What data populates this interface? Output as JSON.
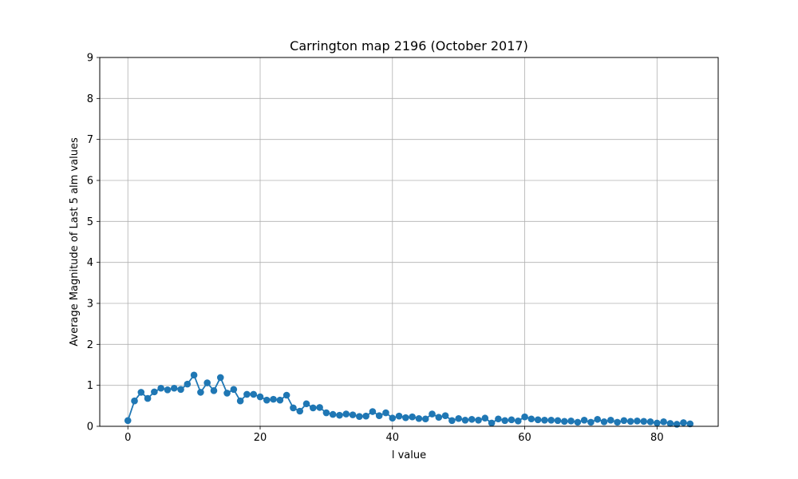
{
  "chart_data": {
    "type": "line",
    "title": "Carrington map 2196 (October 2017)",
    "xlabel": "l value",
    "ylabel": "Average Magnitude of Last 5 alm values",
    "xlim": [
      -4.25,
      89.25
    ],
    "ylim": [
      0,
      9
    ],
    "xticks": [
      0,
      20,
      40,
      60,
      80
    ],
    "yticks": [
      0,
      1,
      2,
      3,
      4,
      5,
      6,
      7,
      8,
      9
    ],
    "grid": true,
    "color": "#1f77b4",
    "marker": "circle",
    "series": [
      {
        "x": [
          0,
          1,
          2,
          3,
          4,
          5,
          6,
          7,
          8,
          9,
          10,
          11,
          12,
          13,
          14,
          15,
          16,
          17,
          18,
          19,
          20,
          21,
          22,
          23,
          24,
          25,
          26,
          27,
          28,
          29,
          30,
          31,
          32,
          33,
          34,
          35,
          36,
          37,
          38,
          39,
          40,
          41,
          42,
          43,
          44,
          45,
          46,
          47,
          48,
          49,
          50,
          51,
          52,
          53,
          54,
          55,
          56,
          57,
          58,
          59,
          60,
          61,
          62,
          63,
          64,
          65,
          66,
          67,
          68,
          69,
          70,
          71,
          72,
          73,
          74,
          75,
          76,
          77,
          78,
          79,
          80,
          81,
          82,
          83,
          84,
          85
        ],
        "values": [
          0.14,
          0.62,
          0.83,
          0.68,
          0.84,
          0.93,
          0.89,
          0.93,
          0.9,
          1.03,
          1.25,
          0.83,
          1.06,
          0.87,
          1.19,
          0.81,
          0.9,
          0.62,
          0.78,
          0.78,
          0.72,
          0.64,
          0.66,
          0.64,
          0.76,
          0.45,
          0.37,
          0.55,
          0.45,
          0.46,
          0.33,
          0.29,
          0.27,
          0.3,
          0.28,
          0.24,
          0.25,
          0.36,
          0.26,
          0.33,
          0.2,
          0.25,
          0.21,
          0.23,
          0.19,
          0.18,
          0.3,
          0.22,
          0.26,
          0.14,
          0.19,
          0.15,
          0.17,
          0.15,
          0.2,
          0.08,
          0.18,
          0.14,
          0.16,
          0.13,
          0.23,
          0.18,
          0.16,
          0.15,
          0.15,
          0.14,
          0.12,
          0.13,
          0.1,
          0.15,
          0.1,
          0.17,
          0.11,
          0.15,
          0.1,
          0.14,
          0.12,
          0.13,
          0.12,
          0.11,
          0.08,
          0.11,
          0.07,
          0.05,
          0.09,
          0.06
        ]
      }
    ]
  }
}
